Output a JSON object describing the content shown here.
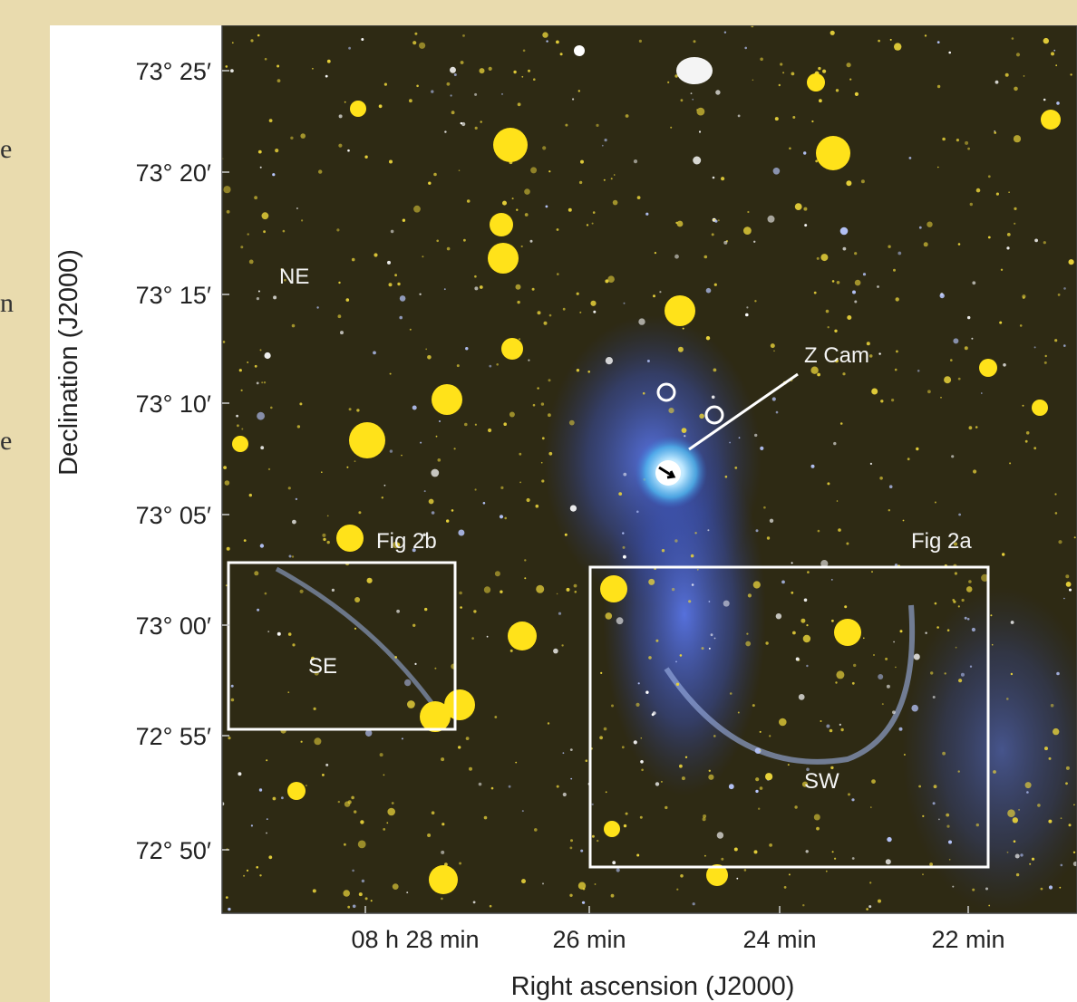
{
  "side_text": [
    "e",
    "n",
    "e"
  ],
  "figure": {
    "y_axis_title": "Declination (J2000)",
    "x_axis_title": "Right ascension (J2000)",
    "y_tick_labels": [
      "73° 25′",
      "73° 20′",
      "73° 15′",
      "73° 10′",
      "73° 05′",
      "73° 00′",
      "72° 55′",
      "72° 50′"
    ],
    "x_tick_labels": [
      "08 h 28 min",
      "26 min",
      "24 min",
      "22 min"
    ],
    "annotations": [
      "NE",
      "Z Cam",
      "Fig 2b",
      "Fig 2a",
      "SE",
      "SW"
    ]
  }
}
